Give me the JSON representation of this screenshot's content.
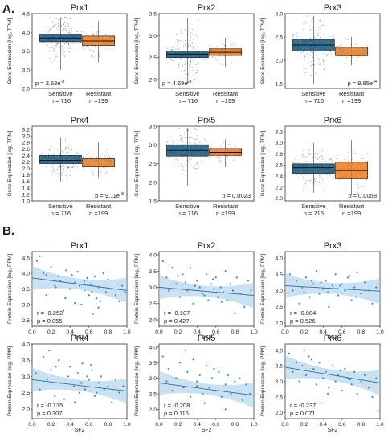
{
  "panels": [
    {
      "label": "A."
    },
    {
      "label": "B."
    }
  ],
  "chart_data": [
    {
      "type": "box",
      "panel": "A",
      "title": "Prx1",
      "ylabel": "Gene Expression [log₂ TPM]",
      "ylim": [
        2.5,
        4.5
      ],
      "yticks": [
        "2.5",
        "3.0",
        "3.5",
        "4.0",
        "4.5"
      ],
      "categories": [
        "Sensitive",
        "Resistant"
      ],
      "counts": [
        "n = 716",
        "n =199"
      ],
      "colors": [
        "#1a5d82",
        "#f07c1d"
      ],
      "boxes": [
        {
          "whislo": 3.0,
          "q1": 3.75,
          "med": 3.85,
          "q3": 3.95,
          "whishi": 4.4
        },
        {
          "whislo": 3.2,
          "q1": 3.65,
          "med": 3.77,
          "q3": 3.9,
          "whishi": 4.3
        }
      ],
      "pvalue": {
        "base": "p = 3.53e",
        "exp": "-8"
      }
    },
    {
      "type": "box",
      "panel": "A",
      "title": "Prx2",
      "ylabel": "Gene Expression [log₂ TPM]",
      "ylim": [
        1.8,
        3.5
      ],
      "yticks": [
        "2.0",
        "2.5",
        "3.0",
        "3.5"
      ],
      "categories": [
        "Sensitive",
        "Resistant"
      ],
      "counts": [
        "n = 716",
        "n =199"
      ],
      "colors": [
        "#1a5d82",
        "#f07c1d"
      ],
      "boxes": [
        {
          "whislo": 1.9,
          "q1": 2.5,
          "med": 2.58,
          "q3": 2.65,
          "whishi": 3.4
        },
        {
          "whislo": 2.3,
          "q1": 2.55,
          "med": 2.62,
          "q3": 2.7,
          "whishi": 2.95
        }
      ],
      "pvalue": {
        "base": "p = 4.69e",
        "exp": "-8"
      }
    },
    {
      "type": "box",
      "panel": "A",
      "title": "Prx3",
      "ylabel": "Gene Expression [log₂ TPM]",
      "ylim": [
        1.4,
        3.0
      ],
      "yticks": [
        "1.5",
        "2.0",
        "2.5",
        "3.0"
      ],
      "categories": [
        "Sensitive",
        "Resistant"
      ],
      "counts": [
        "n = 716",
        "n =199"
      ],
      "colors": [
        "#1a5d82",
        "#f07c1d"
      ],
      "boxes": [
        {
          "whislo": 1.5,
          "q1": 2.2,
          "med": 2.33,
          "q3": 2.45,
          "whishi": 2.95
        },
        {
          "whislo": 1.9,
          "q1": 2.1,
          "med": 2.2,
          "q3": 2.28,
          "whishi": 2.5
        }
      ],
      "pvalue": {
        "base": "p = 9.85e",
        "exp": "-4"
      }
    },
    {
      "type": "box",
      "panel": "A",
      "title": "Prx4",
      "ylabel": "Gene Expression [log₂ TPM]",
      "ylim": [
        1.0,
        3.3
      ],
      "yticks": [
        "1.0",
        "1.2",
        "1.4",
        "1.6",
        "1.8",
        "2.0",
        "2.2",
        "2.4",
        "2.6",
        "2.8",
        "3.0",
        "3.2"
      ],
      "categories": [
        "Sensitive",
        "Resistant"
      ],
      "counts": [
        "n = 716",
        "n =199"
      ],
      "colors": [
        "#1a5d82",
        "#f07c1d"
      ],
      "boxes": [
        {
          "whislo": 1.6,
          "q1": 2.15,
          "med": 2.25,
          "q3": 2.4,
          "whishi": 2.95
        },
        {
          "whislo": 1.7,
          "q1": 2.05,
          "med": 2.2,
          "q3": 2.3,
          "whishi": 2.8
        }
      ],
      "pvalue": {
        "base": "p = 9.11e",
        "exp": "-8"
      }
    },
    {
      "type": "box",
      "panel": "A",
      "title": "Prx5",
      "ylabel": "Gene Expression [log₂ TPM]",
      "ylim": [
        1.5,
        3.5
      ],
      "yticks": [
        "1.5",
        "2.0",
        "2.5",
        "3.0",
        "3.5"
      ],
      "categories": [
        "Sensitive",
        "Resistant"
      ],
      "counts": [
        "n = 716",
        "n =199"
      ],
      "colors": [
        "#1a5d82",
        "#f07c1d"
      ],
      "boxes": [
        {
          "whislo": 1.9,
          "q1": 2.7,
          "med": 2.85,
          "q3": 3.0,
          "whishi": 3.45
        },
        {
          "whislo": 2.4,
          "q1": 2.72,
          "med": 2.8,
          "q3": 2.9,
          "whishi": 3.15
        }
      ],
      "pvalue": {
        "base": "p = 0.0023",
        "exp": ""
      }
    },
    {
      "type": "box",
      "panel": "A",
      "title": "Prx6",
      "ylabel": "Gene Expression [log₂ TPM]",
      "ylim": [
        1.95,
        3.3
      ],
      "yticks": [
        "2.0",
        "2.2",
        "2.4",
        "2.6",
        "2.8",
        "3.0",
        "3.2"
      ],
      "categories": [
        "Sensitive",
        "Resistant"
      ],
      "counts": [
        "n = 716",
        "n =199"
      ],
      "colors": [
        "#1a5d82",
        "#f07c1d"
      ],
      "boxes": [
        {
          "whislo": 2.1,
          "q1": 2.45,
          "med": 2.55,
          "q3": 2.62,
          "whishi": 3.0
        },
        {
          "whislo": 2.05,
          "q1": 2.35,
          "med": 2.5,
          "q3": 2.65,
          "whishi": 3.05
        }
      ],
      "pvalue": {
        "base": "p = 0.0058",
        "exp": ""
      }
    },
    {
      "type": "scatter",
      "panel": "B",
      "title": "Prx1",
      "xlabel": "SF2",
      "ylabel": "Protein Expression [log₂ PPM]",
      "xlim": [
        0,
        1
      ],
      "ylim": [
        2.3,
        4.7
      ],
      "xticks": [
        "0.0",
        "0.2",
        "0.4",
        "0.6",
        "0.8",
        "1.0"
      ],
      "yticks": [
        "2.5",
        "3.0",
        "3.5",
        "4.0",
        "4.5"
      ],
      "fit": {
        "y0": 3.85,
        "y1": 3.45
      },
      "x": [
        0.05,
        0.08,
        0.12,
        0.15,
        0.2,
        0.24,
        0.28,
        0.3,
        0.33,
        0.36,
        0.4,
        0.42,
        0.45,
        0.48,
        0.5,
        0.52,
        0.55,
        0.58,
        0.6,
        0.62,
        0.64,
        0.66,
        0.68,
        0.7,
        0.72,
        0.75,
        0.78,
        0.8,
        0.84,
        0.88,
        0.92,
        0.95,
        0.98,
        0.55,
        0.35,
        0.15,
        0.63,
        0.45,
        0.7,
        0.25
      ],
      "y": [
        4.4,
        4.55,
        4.0,
        3.3,
        4.2,
        3.6,
        3.9,
        3.75,
        2.8,
        4.1,
        3.5,
        3.95,
        3.7,
        4.05,
        3.6,
        3.0,
        3.45,
        3.85,
        3.3,
        3.65,
        2.7,
        3.9,
        3.2,
        3.55,
        3.1,
        4.0,
        3.4,
        3.8,
        3.5,
        3.3,
        3.1,
        3.6,
        3.4,
        3.75,
        3.2,
        3.95,
        3.4,
        3.05,
        2.9,
        3.55
      ],
      "stats": {
        "r": "r = -0.252",
        "p": "p = 0.055"
      }
    },
    {
      "type": "scatter",
      "panel": "B",
      "title": "Prx2",
      "xlabel": "SF2",
      "ylabel": "Protein Expression [log₂ PPM]",
      "xlim": [
        0,
        1
      ],
      "ylim": [
        1.8,
        4.1
      ],
      "xticks": [
        "0.0",
        "0.2",
        "0.4",
        "0.6",
        "0.8",
        "1.0"
      ],
      "yticks": [
        "2.0",
        "2.5",
        "3.0",
        "3.5",
        "4.0"
      ],
      "fit": {
        "y0": 3.0,
        "y1": 2.75
      },
      "x": [
        0.04,
        0.08,
        0.1,
        0.14,
        0.18,
        0.22,
        0.25,
        0.3,
        0.33,
        0.36,
        0.4,
        0.43,
        0.46,
        0.5,
        0.52,
        0.55,
        0.58,
        0.6,
        0.62,
        0.65,
        0.68,
        0.7,
        0.72,
        0.75,
        0.78,
        0.82,
        0.86,
        0.9,
        0.94,
        0.97,
        0.28,
        0.48,
        0.57,
        0.66,
        0.2,
        0.38,
        0.8,
        0.12
      ],
      "y": [
        3.8,
        3.3,
        2.9,
        3.6,
        3.1,
        2.7,
        3.4,
        2.9,
        3.6,
        2.5,
        3.2,
        3.0,
        2.8,
        3.4,
        2.6,
        3.1,
        2.95,
        3.3,
        2.7,
        3.0,
        2.85,
        3.5,
        2.6,
        3.1,
        2.9,
        3.3,
        2.8,
        2.4,
        3.2,
        2.9,
        3.15,
        2.75,
        3.25,
        2.55,
        3.35,
        3.05,
        2.2,
        2.95
      ],
      "stats": {
        "r": "r = -0.107",
        "p": "p = 0.427"
      }
    },
    {
      "type": "scatter",
      "panel": "B",
      "title": "Prx3",
      "xlabel": "SF2",
      "ylabel": "Protein Expression [log₂ PPM]",
      "xlim": [
        0,
        1
      ],
      "ylim": [
        1.9,
        4.2
      ],
      "xticks": [
        "0.0",
        "0.2",
        "0.4",
        "0.6",
        "0.8",
        "1.0"
      ],
      "yticks": [
        "2.0",
        "2.5",
        "3.0",
        "3.5",
        "4.0"
      ],
      "fit": {
        "y0": 3.15,
        "y1": 2.98
      },
      "x": [
        0.05,
        0.08,
        0.12,
        0.15,
        0.18,
        0.22,
        0.26,
        0.3,
        0.33,
        0.36,
        0.4,
        0.43,
        0.46,
        0.5,
        0.53,
        0.56,
        0.6,
        0.63,
        0.66,
        0.7,
        0.73,
        0.76,
        0.8,
        0.84,
        0.88,
        0.92,
        0.96,
        0.28,
        0.45,
        0.58,
        0.68,
        0.2,
        0.38,
        0.75,
        0.55
      ],
      "y": [
        3.5,
        3.0,
        3.3,
        2.6,
        3.1,
        3.4,
        2.8,
        3.2,
        3.6,
        2.9,
        3.05,
        3.3,
        2.5,
        3.15,
        3.5,
        2.85,
        3.2,
        3.0,
        3.4,
        2.7,
        3.1,
        3.55,
        2.9,
        3.25,
        3.0,
        2.6,
        3.1,
        3.3,
        2.95,
        3.15,
        3.45,
        2.95,
        3.25,
        2.8,
        3.05
      ],
      "stats": {
        "r": "r = -0.084",
        "p": "p = 0.526"
      }
    },
    {
      "type": "scatter",
      "panel": "B",
      "title": "Prx4",
      "xlabel": "SF2",
      "ylabel": "Protein Expression [log₂ PPM]",
      "xlim": [
        0,
        1
      ],
      "ylim": [
        1.7,
        4.0
      ],
      "xticks": [
        "0.0",
        "0.2",
        "0.4",
        "0.6",
        "0.8",
        "1.0"
      ],
      "yticks": [
        "2.0",
        "2.5",
        "3.0",
        "3.5",
        "4.0"
      ],
      "fit": {
        "y0": 2.9,
        "y1": 2.55
      },
      "x": [
        0.04,
        0.08,
        0.12,
        0.16,
        0.2,
        0.24,
        0.28,
        0.3,
        0.34,
        0.38,
        0.4,
        0.44,
        0.48,
        0.5,
        0.53,
        0.56,
        0.6,
        0.63,
        0.66,
        0.7,
        0.73,
        0.76,
        0.8,
        0.84,
        0.88,
        0.92,
        0.96,
        0.25,
        0.45,
        0.58,
        0.68,
        0.18,
        0.52,
        0.62
      ],
      "y": [
        3.1,
        2.6,
        3.6,
        2.9,
        3.2,
        2.4,
        3.5,
        2.8,
        2.3,
        3.0,
        3.3,
        2.7,
        3.1,
        2.5,
        3.4,
        2.6,
        2.9,
        3.2,
        2.4,
        2.8,
        3.0,
        2.6,
        2.7,
        2.2,
        2.9,
        2.5,
        2.7,
        3.3,
        2.2,
        3.0,
        2.5,
        3.8,
        2.8,
        3.35
      ],
      "stats": {
        "r": "r = -0.135",
        "p": "p = 0.307"
      }
    },
    {
      "type": "scatter",
      "panel": "B",
      "title": "Prx5",
      "xlabel": "SF2",
      "ylabel": "Protein Expression [log₂ PPM]",
      "xlim": [
        0,
        1
      ],
      "ylim": [
        1.7,
        4.1
      ],
      "xticks": [
        "0.0",
        "0.2",
        "0.4",
        "0.6",
        "0.8",
        "1.0"
      ],
      "yticks": [
        "2.0",
        "2.5",
        "3.0",
        "3.5",
        "4.0"
      ],
      "fit": {
        "y0": 2.85,
        "y1": 2.45
      },
      "x": [
        0.04,
        0.08,
        0.1,
        0.14,
        0.18,
        0.22,
        0.26,
        0.3,
        0.33,
        0.36,
        0.4,
        0.43,
        0.46,
        0.5,
        0.53,
        0.56,
        0.6,
        0.63,
        0.66,
        0.7,
        0.73,
        0.76,
        0.8,
        0.84,
        0.88,
        0.92,
        0.96,
        0.28,
        0.48,
        0.58,
        0.7,
        0.2,
        0.4,
        0.85
      ],
      "y": [
        3.7,
        2.9,
        3.3,
        2.6,
        3.0,
        3.5,
        2.7,
        3.2,
        2.4,
        3.6,
        2.9,
        3.1,
        2.5,
        3.4,
        2.7,
        3.0,
        2.6,
        3.2,
        2.4,
        2.8,
        3.1,
        2.5,
        2.9,
        2.6,
        2.3,
        2.8,
        2.5,
        3.9,
        2.2,
        3.3,
        2.0,
        2.2,
        2.75,
        3.0
      ],
      "stats": {
        "r": "r = -0.208",
        "p": "p = 0.116"
      }
    },
    {
      "type": "scatter",
      "panel": "B",
      "title": "Prx6",
      "xlabel": "SF2",
      "ylabel": "Protein Expression [log₂ PPM]",
      "xlim": [
        0,
        1
      ],
      "ylim": [
        1.8,
        4.2
      ],
      "xticks": [
        "0.0",
        "0.2",
        "0.4",
        "0.6",
        "0.8",
        "1.0"
      ],
      "yticks": [
        "2.0",
        "2.5",
        "3.0",
        "3.5",
        "4.0"
      ],
      "fit": {
        "y0": 3.45,
        "y1": 2.95
      },
      "x": [
        0.04,
        0.08,
        0.12,
        0.15,
        0.18,
        0.22,
        0.25,
        0.3,
        0.33,
        0.36,
        0.4,
        0.43,
        0.46,
        0.5,
        0.53,
        0.56,
        0.6,
        0.63,
        0.66,
        0.7,
        0.73,
        0.76,
        0.8,
        0.84,
        0.88,
        0.92,
        0.96,
        0.28,
        0.45,
        0.58,
        0.68,
        0.2,
        0.38,
        0.98
      ],
      "y": [
        3.9,
        3.3,
        3.6,
        3.0,
        3.5,
        3.2,
        3.8,
        3.4,
        2.9,
        3.6,
        3.1,
        3.3,
        2.8,
        3.5,
        3.0,
        3.2,
        2.7,
        3.4,
        3.1,
        2.9,
        3.3,
        2.6,
        3.0,
        3.2,
        2.8,
        2.5,
        3.1,
        3.7,
        2.6,
        3.35,
        3.05,
        4.0,
        2.3,
        2.05
      ],
      "stats": {
        "r": "r = -0.237",
        "p": "p = 0.071"
      }
    }
  ]
}
